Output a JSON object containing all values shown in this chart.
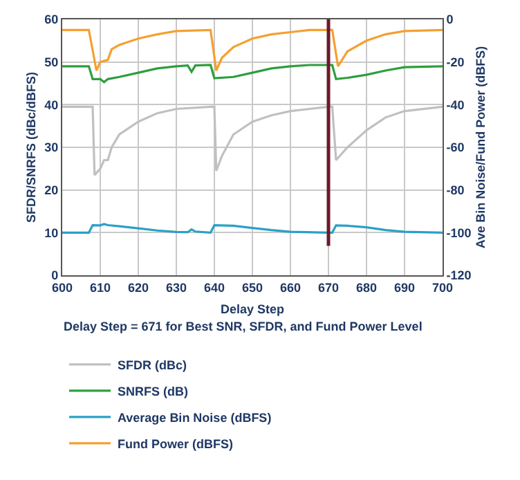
{
  "chart_data": {
    "type": "line",
    "xlabel": "Delay Step",
    "ylabel": "SFDR/SNRFS (dBc/dBFS)",
    "y2label": "Ave Bin Noise/Fund Power (dBFS)",
    "xlim": [
      600,
      700
    ],
    "xticks": [
      600,
      610,
      620,
      630,
      640,
      650,
      660,
      670,
      680,
      690,
      700
    ],
    "ylim": [
      0,
      60
    ],
    "yticks": [
      0,
      10,
      20,
      30,
      40,
      50,
      60
    ],
    "y2lim": [
      -120,
      0
    ],
    "y2ticks": [
      -120,
      -100,
      -80,
      -60,
      -40,
      -20,
      0
    ],
    "grid": true,
    "legend": "bottom",
    "marker": "none",
    "line_style": "solid",
    "annotations": [
      "Delay Step = 671 for Best SNR, SFDR, and Fund Power Level"
    ],
    "ref_lines": [
      {
        "axis": "x",
        "value": 670,
        "label": null,
        "color": "#6b1a2a"
      }
    ],
    "series": [
      {
        "name": "SFDR (dBc)",
        "color": "#c0c0c0",
        "x": [
          600,
          607,
          608,
          608.5,
          610,
          611,
          612,
          613,
          615,
          620,
          625,
          630,
          639,
          640,
          640.5,
          642,
          645,
          650,
          655,
          660,
          665,
          670,
          671,
          672,
          675,
          680,
          685,
          690,
          700
        ],
        "values": [
          39.5,
          39.5,
          39.5,
          23.5,
          25,
          27,
          27,
          30,
          33,
          36,
          38,
          39,
          39.5,
          39.5,
          24.5,
          28,
          33,
          36,
          37.5,
          38.5,
          39,
          39.5,
          39.5,
          27,
          30,
          34,
          37,
          38.5,
          39.5
        ]
      },
      {
        "name": "SNRFS (dB)",
        "color": "#2e9e3e",
        "x": [
          600,
          607,
          608,
          610,
          611,
          612,
          615,
          620,
          625,
          630,
          633,
          634,
          635,
          639,
          640,
          645,
          650,
          655,
          660,
          665,
          670,
          671,
          672,
          675,
          680,
          685,
          690,
          700
        ],
        "values": [
          49,
          49,
          46,
          46,
          45.3,
          46,
          46.5,
          47.5,
          48.5,
          49,
          49.2,
          47.7,
          49.2,
          49.3,
          46.2,
          46.5,
          47.5,
          48.5,
          49,
          49.3,
          49.3,
          49.3,
          46,
          46.3,
          47,
          48,
          48.8,
          49
        ]
      },
      {
        "name": "Average Bin Noise (dBFS)",
        "color": "#2aa0c8",
        "axis": "y2",
        "x": [
          600,
          607,
          608,
          610,
          611,
          612,
          615,
          620,
          625,
          630,
          633,
          634,
          635,
          639,
          640,
          645,
          650,
          655,
          660,
          670,
          671,
          672,
          675,
          680,
          685,
          690,
          700
        ],
        "values": [
          -100,
          -100,
          -96.5,
          -96.6,
          -96,
          -96.5,
          -97,
          -98,
          -99,
          -99.7,
          -99.8,
          -98.5,
          -99.5,
          -100,
          -96.5,
          -96.8,
          -97.8,
          -98.8,
          -99.6,
          -100,
          -100,
          -96.6,
          -96.8,
          -97.5,
          -98.8,
          -99.6,
          -100
        ]
      },
      {
        "name": "Fund Power (dBFS)",
        "color": "#f5a030",
        "axis": "y2",
        "x": [
          600,
          607,
          609,
          610,
          612,
          613,
          615,
          620,
          625,
          630,
          639,
          640.5,
          642,
          645,
          650,
          655,
          660,
          665,
          671,
          672.5,
          675,
          680,
          685,
          690,
          700
        ],
        "values": [
          -5,
          -5,
          -24,
          -20,
          -19,
          -14,
          -12,
          -9,
          -7,
          -5.5,
          -5,
          -24,
          -18,
          -13,
          -9,
          -7,
          -6,
          -5,
          -5,
          -22,
          -15,
          -10,
          -7,
          -5.5,
          -5
        ]
      }
    ]
  }
}
